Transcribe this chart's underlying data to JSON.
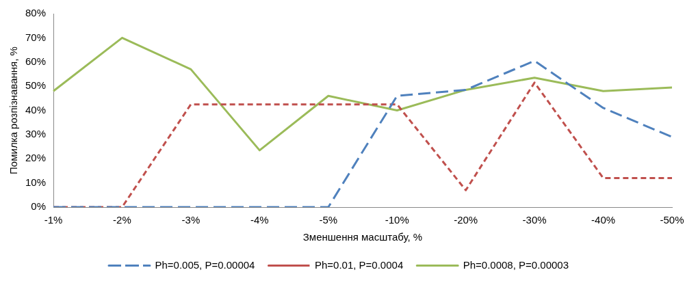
{
  "chart_data": {
    "type": "line",
    "xlabel": "Зменшення масштабу, %",
    "ylabel": "Помилка розпізнавання, %",
    "categories": [
      "-1%",
      "-2%",
      "-3%",
      "-4%",
      "-5%",
      "-10%",
      "-20%",
      "-30%",
      "-40%",
      "-50%"
    ],
    "ylim": [
      0,
      0.8
    ],
    "yticks": [
      {
        "value": 0,
        "label": "0%"
      },
      {
        "value": 0.1,
        "label": "10%"
      },
      {
        "value": 0.2,
        "label": "20%"
      },
      {
        "value": 0.3,
        "label": "30%"
      },
      {
        "value": 0.4,
        "label": "40%"
      },
      {
        "value": 0.5,
        "label": "50%"
      },
      {
        "value": 0.6,
        "label": "60%"
      },
      {
        "value": 0.7,
        "label": "70%"
      },
      {
        "value": 0.8,
        "label": "80%"
      }
    ],
    "grid": false,
    "legend": "bottom",
    "marker": "none",
    "series": [
      {
        "name": "Ph=0.005, P=0.00004",
        "color": "#4f81bd",
        "line_style": "dashed",
        "values": [
          0,
          0,
          0,
          0,
          0,
          0.46,
          0.485,
          0.605,
          0.41,
          0.29
        ]
      },
      {
        "name": "Ph=0.01, P=0.0004",
        "color": "#c0504d",
        "line_style": "dotted",
        "values": [
          0,
          0,
          0.425,
          0.425,
          0.425,
          0.425,
          0.07,
          0.515,
          0.12,
          0.12
        ]
      },
      {
        "name": "Ph=0.0008, P=0.00003",
        "color": "#9bbb59",
        "line_style": "solid",
        "values": [
          0.48,
          0.7,
          0.57,
          0.235,
          0.46,
          0.4,
          0.485,
          0.535,
          0.48,
          0.495
        ]
      }
    ]
  }
}
